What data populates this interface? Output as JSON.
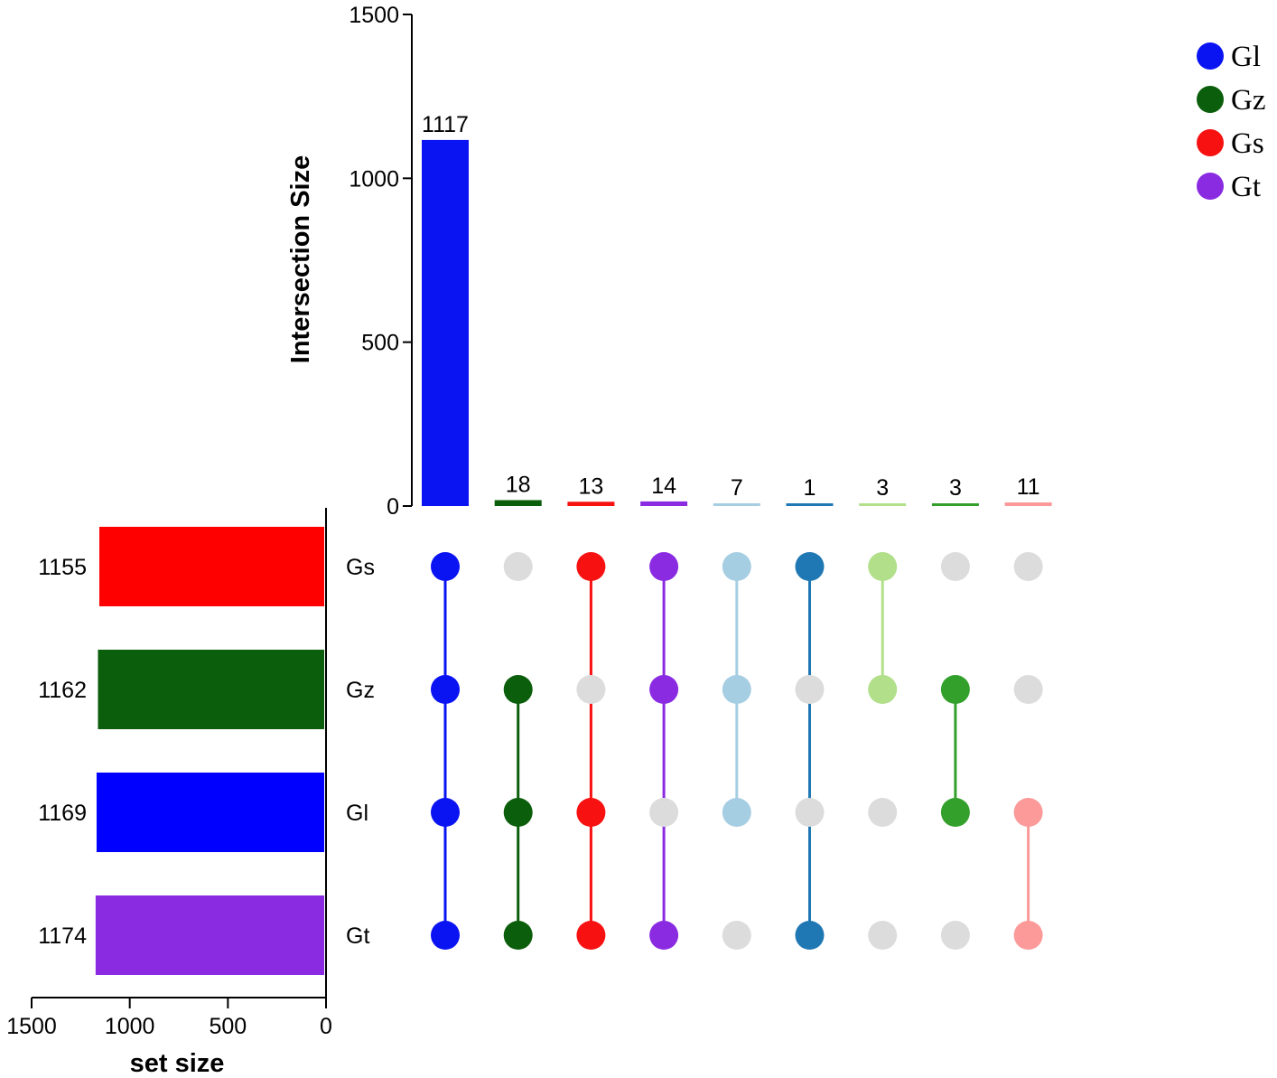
{
  "chart_data": {
    "type": "upset",
    "legend": {
      "position": "top-right",
      "items": [
        {
          "label": "Gl",
          "color": "#0a14f2"
        },
        {
          "label": "Gz",
          "color": "#0b5e0b"
        },
        {
          "label": "Gs",
          "color": "#f71111"
        },
        {
          "label": "Gt",
          "color": "#8a2be2"
        }
      ]
    },
    "intersection_axis": {
      "title": "Intersection Size",
      "range": [
        0,
        1500
      ],
      "ticks": [
        "0",
        "500",
        "1000",
        "1500"
      ]
    },
    "set_size_axis": {
      "title": "set size",
      "range": [
        0,
        1500
      ],
      "ticks": [
        "1500",
        "1000",
        "500",
        "0"
      ]
    },
    "sets": [
      {
        "name": "Gs",
        "size": 1155,
        "label": "1155",
        "color": "#ff0000"
      },
      {
        "name": "Gz",
        "size": 1162,
        "label": "1162",
        "color": "#0b5e0b"
      },
      {
        "name": "Gl",
        "size": 1169,
        "label": "1169",
        "color": "#0000ff"
      },
      {
        "name": "Gt",
        "size": 1174,
        "label": "1174",
        "color": "#8a2be2"
      }
    ],
    "intersections": [
      {
        "size": 1117,
        "label": "1117",
        "members": [
          "Gs",
          "Gz",
          "Gl",
          "Gt"
        ],
        "color": "#0a14f2"
      },
      {
        "size": 18,
        "label": "18",
        "members": [
          "Gz",
          "Gl",
          "Gt"
        ],
        "color": "#0b5e0b"
      },
      {
        "size": 13,
        "label": "13",
        "members": [
          "Gs",
          "Gl",
          "Gt"
        ],
        "color": "#f71111"
      },
      {
        "size": 14,
        "label": "14",
        "members": [
          "Gs",
          "Gz",
          "Gt"
        ],
        "color": "#8a2be2"
      },
      {
        "size": 7,
        "label": "7",
        "members": [
          "Gs",
          "Gz",
          "Gl"
        ],
        "color": "#a6cee3"
      },
      {
        "size": 1,
        "label": "1",
        "members": [
          "Gs",
          "Gt"
        ],
        "color": "#1f78b4"
      },
      {
        "size": 3,
        "label": "3",
        "members": [
          "Gs",
          "Gz"
        ],
        "color": "#b2df8a"
      },
      {
        "size": 3,
        "label": "3",
        "members": [
          "Gz",
          "Gl"
        ],
        "color": "#33a02c"
      },
      {
        "size": 11,
        "label": "11",
        "members": [
          "Gl",
          "Gt"
        ],
        "color": "#fb9a99"
      }
    ],
    "inactive_dot_color": "#dcdcdc"
  }
}
